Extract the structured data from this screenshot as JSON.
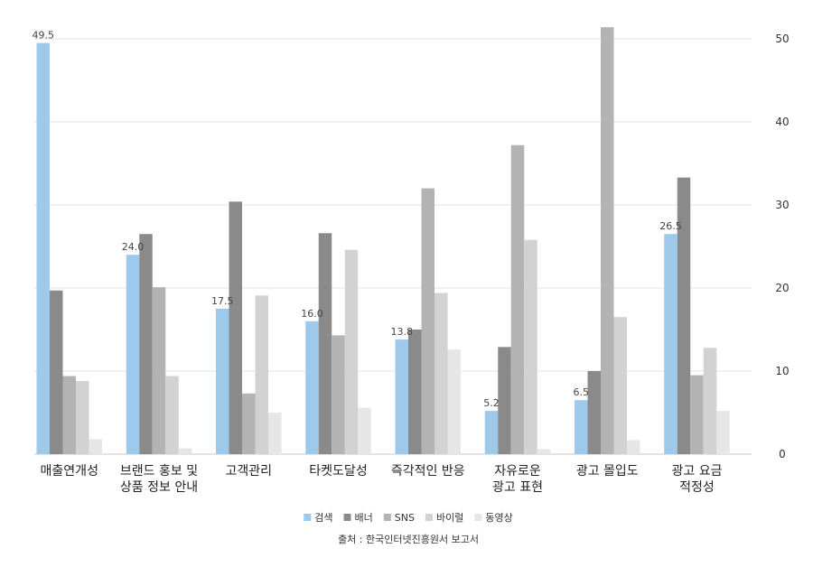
{
  "chart_data": {
    "type": "bar",
    "categories": [
      [
        "매출연개성"
      ],
      [
        "브랜드 홍보 및",
        "상품 정보 안내"
      ],
      [
        "고객관리"
      ],
      [
        "타켓도달성"
      ],
      [
        "즉각적인 반응"
      ],
      [
        "자유로운",
        "광고 표현"
      ],
      [
        "광고 몰입도"
      ],
      [
        "광고 요금",
        "적정성"
      ]
    ],
    "series": [
      {
        "name": "검색",
        "color": "#9dc9ea",
        "values": [
          49.5,
          24.0,
          17.5,
          16.0,
          13.8,
          5.2,
          6.5,
          26.5
        ],
        "labels": [
          "49.5",
          "24.0",
          "17.5",
          "16.0",
          "13.8",
          "5.2",
          "6.5",
          "26.5"
        ]
      },
      {
        "name": "배너",
        "color": "#8a8a8a",
        "values": [
          19.7,
          26.5,
          30.4,
          26.6,
          15.0,
          12.9,
          10.0,
          33.3
        ]
      },
      {
        "name": "SNS",
        "color": "#b3b3b3",
        "values": [
          9.4,
          20.1,
          7.3,
          14.3,
          32.0,
          37.2,
          51.4,
          9.5
        ]
      },
      {
        "name": "바이럴",
        "color": "#d2d2d2",
        "values": [
          8.8,
          9.4,
          19.1,
          24.6,
          19.4,
          25.8,
          16.5,
          12.8
        ]
      },
      {
        "name": "동영상",
        "color": "#e6e6e6",
        "values": [
          1.8,
          0.7,
          5.0,
          5.6,
          12.6,
          0.6,
          1.7,
          5.2
        ]
      }
    ],
    "yticks": [
      "0",
      "10",
      "20",
      "30",
      "40",
      "50"
    ],
    "ylim": [
      0,
      50
    ],
    "grid": true,
    "legend": "bottom-center"
  },
  "source": "출처 : 한국인터넷진흥원서 보고서"
}
